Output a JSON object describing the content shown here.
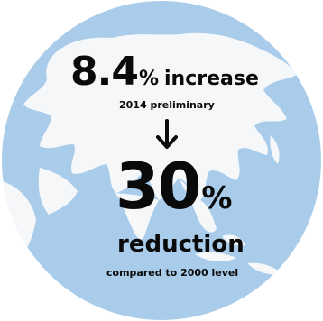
{
  "colors": {
    "ocean": "#a8ccea",
    "land": "#f6f7f9",
    "text": "#0a0a0a"
  },
  "stat_increase": {
    "value": "8.4",
    "unit": "%",
    "label": "increase",
    "note": "2014 preliminary"
  },
  "arrow_icon": "down-arrow-icon",
  "stat_reduction": {
    "value": "30",
    "unit": "%",
    "label": "reduction",
    "note": "compared to 2000 level"
  }
}
